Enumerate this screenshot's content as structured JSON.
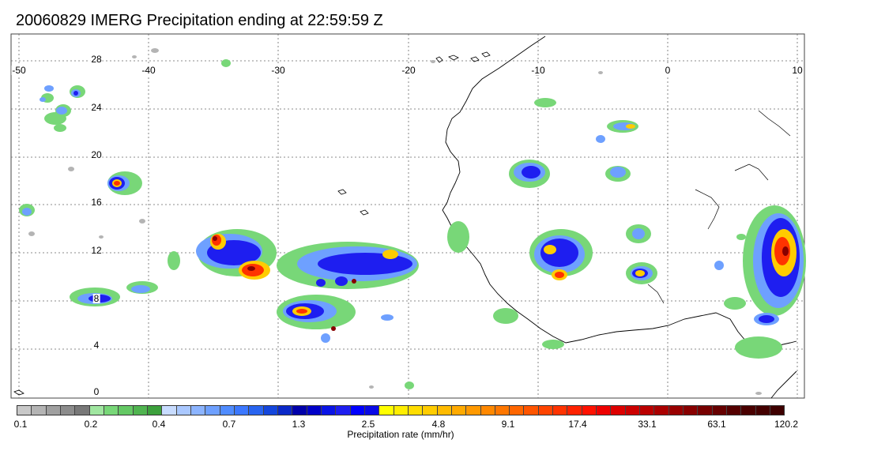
{
  "title": "20060829 IMERG Precipitation ending at 22:59:59 Z",
  "map": {
    "lon_labels": [
      "-50",
      "-40",
      "-30",
      "-20",
      "-10",
      "0",
      "10"
    ],
    "lat_labels": [
      "28",
      "24",
      "20",
      "16",
      "12",
      "8",
      "4",
      "0"
    ]
  },
  "colorbar": {
    "colors": [
      "#c8c8c8",
      "#b4b4b4",
      "#a0a0a0",
      "#8c8c8c",
      "#787878",
      "#a0e6a0",
      "#78d778",
      "#64c864",
      "#50b450",
      "#3ca03c",
      "#c8dcff",
      "#aac8ff",
      "#8cb4ff",
      "#6ea0ff",
      "#508cff",
      "#3c78ff",
      "#2864f0",
      "#1446dc",
      "#0a28c8",
      "#0000aa",
      "#0000c8",
      "#0a14e6",
      "#1e1ef0",
      "#0000ff",
      "#0a0ae6",
      "#ffff00",
      "#ffee00",
      "#ffdd00",
      "#ffcc00",
      "#ffbb00",
      "#ffaa00",
      "#ff9900",
      "#ff8800",
      "#ff7700",
      "#ff6600",
      "#ff5500",
      "#ff4400",
      "#ff3300",
      "#ff2200",
      "#ff1100",
      "#ee0000",
      "#dd0000",
      "#cc0000",
      "#bb0000",
      "#aa0000",
      "#990000",
      "#880000",
      "#770000",
      "#660000",
      "#550000",
      "#4a0000",
      "#440000",
      "#3e0000"
    ],
    "tick_labels": [
      "0.1",
      "0.2",
      "0.4",
      "0.7",
      "1.3",
      "2.5",
      "4.8",
      "9.1",
      "17.4",
      "33.1",
      "63.1",
      "120.2"
    ],
    "units_label": "Precipitation rate (mm/hr)"
  }
}
